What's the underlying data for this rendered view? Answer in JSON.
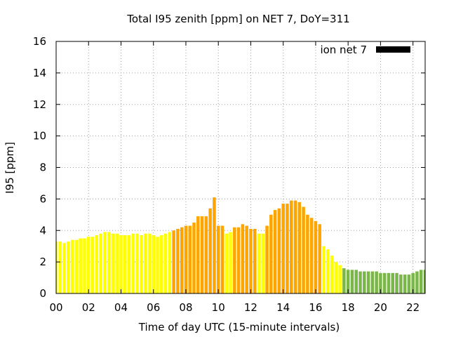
{
  "chart_data": {
    "type": "bar",
    "title": "Total I95 zenith [ppm] on NET 7, DoY=311",
    "xlabel": "Time of day UTC (15-minute intervals)",
    "ylabel": "I95 [ppm]",
    "xlim": [
      0,
      22.75
    ],
    "ylim": [
      0,
      16
    ],
    "x_ticks": [
      "00",
      "02",
      "04",
      "06",
      "08",
      "10",
      "12",
      "14",
      "16",
      "18",
      "20",
      "22"
    ],
    "y_ticks": [
      "0",
      "2",
      "4",
      "6",
      "8",
      "10",
      "12",
      "14",
      "16"
    ],
    "grid": true,
    "legend": {
      "label": "ion net 7",
      "position": "top-right",
      "color": "#000000"
    },
    "colors": {
      "low": "#ffff00",
      "medium": "#ffa500",
      "elevated": "#7ab648"
    },
    "interval_hours": 0.25,
    "values": [
      3.3,
      3.3,
      3.2,
      3.3,
      3.4,
      3.4,
      3.5,
      3.5,
      3.6,
      3.6,
      3.7,
      3.8,
      3.9,
      3.9,
      3.8,
      3.8,
      3.7,
      3.7,
      3.7,
      3.8,
      3.8,
      3.7,
      3.8,
      3.8,
      3.7,
      3.6,
      3.7,
      3.8,
      3.9,
      4.0,
      4.1,
      4.2,
      4.3,
      4.3,
      4.5,
      4.9,
      4.9,
      4.9,
      5.4,
      6.1,
      4.3,
      4.3,
      3.8,
      3.9,
      4.2,
      4.2,
      4.4,
      4.3,
      4.1,
      4.1,
      3.8,
      3.8,
      4.3,
      5.0,
      5.3,
      5.4,
      5.7,
      5.7,
      5.9,
      5.9,
      5.8,
      5.5,
      5.0,
      4.8,
      4.6,
      4.4,
      3.0,
      2.8,
      2.4,
      2.0,
      1.8,
      1.6,
      1.5,
      1.5,
      1.5,
      1.4,
      1.4,
      1.4,
      1.4,
      1.4,
      1.3,
      1.3,
      1.3,
      1.3,
      1.3,
      1.2,
      1.2,
      1.2,
      1.3,
      1.4,
      1.5,
      1.5
    ],
    "value_colors": [
      "low",
      "low",
      "low",
      "low",
      "low",
      "low",
      "low",
      "low",
      "low",
      "low",
      "low",
      "low",
      "low",
      "low",
      "low",
      "low",
      "low",
      "low",
      "low",
      "low",
      "low",
      "low",
      "low",
      "low",
      "low",
      "low",
      "low",
      "low",
      "low",
      "medium",
      "medium",
      "medium",
      "medium",
      "medium",
      "medium",
      "medium",
      "medium",
      "medium",
      "medium",
      "medium",
      "medium",
      "medium",
      "low",
      "low",
      "medium",
      "medium",
      "medium",
      "medium",
      "medium",
      "medium",
      "low",
      "low",
      "medium",
      "medium",
      "medium",
      "medium",
      "medium",
      "medium",
      "medium",
      "medium",
      "medium",
      "medium",
      "medium",
      "medium",
      "medium",
      "medium",
      "low",
      "low",
      "low",
      "low",
      "low",
      "elevated",
      "elevated",
      "elevated",
      "elevated",
      "elevated",
      "elevated",
      "elevated",
      "elevated",
      "elevated",
      "elevated",
      "elevated",
      "elevated",
      "elevated",
      "elevated",
      "elevated",
      "elevated",
      "elevated",
      "elevated",
      "elevated",
      "elevated",
      "elevated"
    ]
  }
}
